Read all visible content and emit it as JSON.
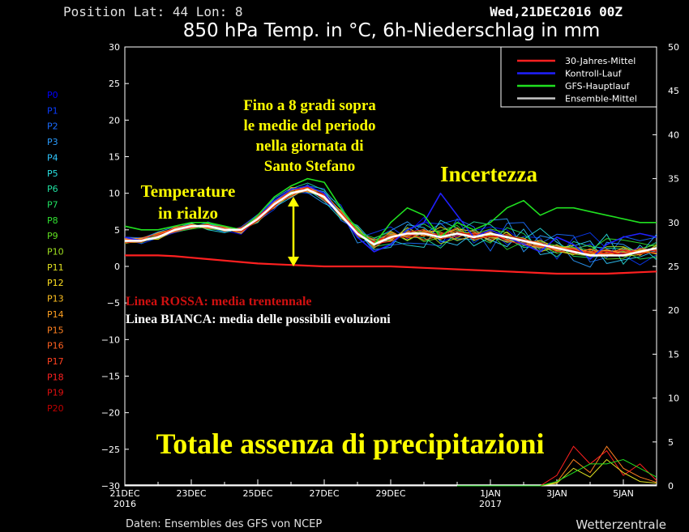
{
  "header": {
    "position_text": "Position  Lat: 44 Lon: 8",
    "date_text": "Wed,21DEC2016 00Z",
    "title": "850 hPa Temp. in °C, 6h-Niederschlag in mm"
  },
  "footer": {
    "source": "Daten: Ensembles des GFS von NCEP",
    "brand": "Wetterzentrale"
  },
  "members": [
    "P0",
    "P1",
    "P2",
    "P3",
    "P4",
    "P5",
    "P6",
    "P7",
    "P8",
    "P9",
    "P10",
    "P11",
    "P12",
    "P13",
    "P14",
    "P15",
    "P16",
    "P17",
    "P18",
    "P19",
    "P20"
  ],
  "member_colors": [
    "#0000ff",
    "#0a3cff",
    "#1a6cff",
    "#2a9cff",
    "#30c8ff",
    "#28e0e0",
    "#20e0a0",
    "#20e060",
    "#30e030",
    "#60e020",
    "#a0e020",
    "#e0e020",
    "#ffe020",
    "#ffc020",
    "#ffa020",
    "#ff8020",
    "#ff6020",
    "#ff4020",
    "#ff2020",
    "#e01010",
    "#c00000"
  ],
  "legend": {
    "items": [
      {
        "label": "30-Jahres-Mittel",
        "color": "#ff2020"
      },
      {
        "label": "Kontroll-Lauf",
        "color": "#2020ff"
      },
      {
        "label": "GFS-Hauptlauf",
        "color": "#20e020"
      },
      {
        "label": "Ensemble-Mittel",
        "color": "#c8c8c8"
      }
    ]
  },
  "annotations": {
    "temp_rise": [
      "Temperature",
      "in rialzo"
    ],
    "peak": [
      "Fino a 8 gradi sopra",
      "le medie del periodo",
      "nella giornata di",
      "Santo Stefano"
    ],
    "uncertainty": "Incertezza",
    "red_line": "Linea ROSSA: media trentennale",
    "white_line": "Linea BIANCA: media delle possibili evoluzioni",
    "precip": "Totale assenza di precipitazioni"
  },
  "chart_data": {
    "type": "line",
    "x": [
      0,
      0.5,
      1,
      1.5,
      2,
      2.5,
      3,
      3.5,
      4,
      4.5,
      5,
      5.5,
      6,
      6.5,
      7,
      7.5,
      8,
      8.5,
      9,
      9.5,
      10,
      10.5,
      11,
      11.5,
      12,
      12.5,
      13,
      13.5,
      14,
      14.5,
      15,
      15.5,
      16
    ],
    "x_unit": "days since 21DEC2016",
    "xticks": [
      {
        "day": 0,
        "label": "21DEC",
        "sub": "2016"
      },
      {
        "day": 2,
        "label": "23DEC",
        "sub": ""
      },
      {
        "day": 4,
        "label": "25DEC",
        "sub": ""
      },
      {
        "day": 6,
        "label": "27DEC",
        "sub": ""
      },
      {
        "day": 8,
        "label": "29DEC",
        "sub": ""
      },
      {
        "day": 11,
        "label": "1JAN",
        "sub": "2017"
      },
      {
        "day": 13,
        "label": "3JAN",
        "sub": ""
      },
      {
        "day": 15,
        "label": "5JAN",
        "sub": ""
      }
    ],
    "xlim": [
      0,
      16
    ],
    "ylim_left": [
      -30,
      30
    ],
    "yticks_left": [
      30,
      25,
      20,
      15,
      10,
      5,
      0,
      -5,
      -10,
      -15,
      -20,
      -25,
      -30
    ],
    "ylabel_left": "",
    "ylim_right": [
      0,
      50
    ],
    "yticks_right": [
      50,
      45,
      40,
      35,
      30,
      25,
      20,
      15,
      10,
      5,
      0
    ],
    "ylabel_right": "",
    "grid": false,
    "legend_position": "top-right",
    "series": [
      {
        "name": "30-Jahres-Mittel",
        "color": "#ff2020",
        "width": 2.2,
        "values": [
          1.5,
          1.5,
          1.5,
          1.4,
          1.2,
          1.0,
          0.8,
          0.6,
          0.4,
          0.3,
          0.2,
          0.1,
          0.0,
          0.0,
          0.0,
          0.0,
          0.0,
          -0.1,
          -0.2,
          -0.3,
          -0.4,
          -0.5,
          -0.6,
          -0.7,
          -0.8,
          -0.9,
          -1.0,
          -1.0,
          -1.0,
          -1.0,
          -0.9,
          -0.8,
          -0.7
        ]
      },
      {
        "name": "Kontroll-Lauf",
        "color": "#2020ff",
        "width": 1.6,
        "values": [
          4,
          3.5,
          4,
          5,
          5.5,
          5.5,
          5,
          5,
          7,
          9,
          10.5,
          11,
          10,
          7,
          4,
          2,
          3,
          5,
          6,
          10,
          7,
          4,
          5,
          4,
          3,
          2,
          4,
          3,
          1,
          3,
          4,
          4.5,
          4
        ]
      },
      {
        "name": "GFS-Hauptlauf",
        "color": "#20e020",
        "width": 1.6,
        "values": [
          5.5,
          5,
          5,
          5.5,
          6,
          6,
          5.5,
          5,
          7,
          9.5,
          11,
          12,
          11.5,
          8,
          5,
          3,
          6,
          8,
          7,
          4,
          6,
          5,
          6,
          8,
          9,
          7,
          8,
          8,
          7.5,
          7,
          6.5,
          6,
          6
        ]
      },
      {
        "name": "Ensemble-Mittel",
        "color": "#ffffff",
        "width": 2.6,
        "values": [
          3.5,
          3.5,
          4,
          5,
          5.5,
          5.5,
          5,
          5,
          6.5,
          8.5,
          10,
          10.5,
          9.5,
          7,
          4.5,
          3,
          4,
          4.5,
          4.5,
          4,
          4.5,
          4,
          4.5,
          4,
          3.5,
          3,
          2.5,
          2,
          1.5,
          1.5,
          1.5,
          2,
          2.5
        ]
      }
    ],
    "ensemble_members": [
      [
        3.2,
        3.6,
        4.2,
        5.1,
        5.8,
        5.2,
        4.9,
        4.4,
        6.6,
        8.9,
        9.6,
        11.2,
        9.1,
        6.8,
        5.2,
        3.4,
        4.1,
        4.5,
        6.7,
        3.3,
        4.2,
        4.9,
        5.4,
        5.0,
        3.2,
        2.4,
        2.5,
        2.2,
        3.1,
        2.0,
        1.8,
        2.6,
        1.9
      ],
      [
        3.7,
        3.1,
        3.9,
        4.6,
        5.2,
        6.1,
        5.3,
        5.0,
        6.2,
        7.8,
        10.3,
        10.0,
        9.8,
        8.4,
        3.9,
        4.6,
        5.4,
        3.8,
        6.0,
        5.8,
        6.4,
        3.2,
        4.8,
        3.0,
        4.1,
        3.9,
        1.0,
        3.9,
        4.6,
        2.4,
        1.5,
        0.2,
        1.6
      ],
      [
        4.0,
        3.9,
        4.0,
        5.0,
        5.7,
        5.3,
        4.7,
        5.4,
        7.1,
        8.6,
        9.9,
        11.0,
        10.6,
        6.3,
        5.0,
        2.0,
        2.9,
        3.2,
        3.1,
        2.8,
        6.5,
        5.4,
        2.1,
        5.9,
        6.0,
        3.1,
        4.4,
        4.2,
        0.6,
        1.2,
        4.1,
        3.5,
        4.0
      ],
      [
        3.3,
        3.8,
        4.7,
        5.4,
        5.5,
        5.8,
        5.2,
        4.8,
        6.8,
        9.3,
        10.7,
        10.1,
        8.6,
        7.6,
        3.2,
        3.8,
        4.9,
        6.1,
        4.4,
        5.9,
        3.8,
        3.7,
        6.3,
        6.5,
        2.0,
        4.2,
        3.7,
        0.8,
        -0.1,
        3.3,
        3.0,
        1.7,
        4.4
      ],
      [
        3.9,
        3.4,
        4.4,
        4.8,
        5.3,
        5.7,
        5.5,
        4.9,
        6.4,
        8.1,
        9.4,
        10.8,
        10.2,
        7.2,
        4.8,
        2.3,
        2.6,
        5.7,
        5.3,
        3.5,
        2.9,
        4.6,
        3.6,
        2.7,
        5.1,
        1.6,
        2.0,
        2.8,
        3.5,
        0.4,
        0.9,
        1.3,
        2.2
      ],
      [
        3.5,
        3.7,
        4.1,
        5.2,
        5.9,
        5.0,
        4.6,
        5.2,
        6.0,
        8.8,
        10.1,
        10.5,
        8.9,
        6.5,
        5.6,
        3.1,
        3.6,
        2.9,
        2.6,
        6.3,
        5.2,
        2.8,
        4.0,
        3.4,
        3.7,
        5.2,
        3.3,
        1.9,
        1.8,
        4.4,
        0.3,
        2.9,
        0.9
      ],
      [
        3.6,
        3.3,
        4.3,
        4.9,
        5.6,
        5.6,
        5.1,
        4.6,
        7.0,
        8.3,
        10.6,
        11.4,
        10.4,
        7.9,
        4.3,
        3.6,
        4.5,
        4.0,
        3.9,
        2.5,
        4.7,
        6.1,
        5.7,
        3.8,
        2.6,
        2.7,
        1.3,
        3.4,
        2.7,
        2.5,
        2.4,
        2.1,
        3.3
      ],
      [
        3.4,
        3.5,
        3.8,
        5.3,
        5.4,
        5.9,
        5.4,
        5.1,
        6.5,
        9.0,
        9.8,
        10.3,
        9.4,
        7.4,
        5.4,
        2.7,
        3.1,
        5.1,
        5.8,
        4.5,
        3.5,
        4.2,
        3.2,
        5.3,
        4.5,
        2.2,
        3.0,
        1.4,
        1.2,
        1.7,
        2.1,
        1.0,
        1.3
      ],
      [
        3.8,
        3.2,
        4.5,
        4.7,
        5.1,
        5.4,
        4.8,
        5.3,
        6.7,
        8.4,
        10.4,
        10.6,
        9.7,
        6.6,
        4.7,
        3.9,
        4.7,
        3.5,
        4.7,
        4.9,
        5.6,
        3.5,
        4.5,
        2.3,
        3.4,
        3.4,
        2.8,
        2.6,
        2.2,
        3.8,
        3.6,
        3.2,
        2.7
      ],
      [
        3.1,
        3.7,
        4.0,
        5.2,
        5.7,
        5.1,
        5.0,
        4.7,
        6.3,
        8.7,
        10.0,
        11.1,
        9.0,
        7.7,
        4.1,
        3.3,
        3.9,
        4.8,
        3.4,
        3.9,
        4.9,
        4.4,
        5.1,
        4.6,
        2.8,
        2.9,
        1.8,
        2.4,
        2.9,
        1.0,
        1.1,
        2.4,
        3.0
      ],
      [
        3.2,
        3.4,
        4.1,
        5.0,
        5.5,
        5.5,
        5.0,
        5.0,
        6.9,
        8.5,
        10.2,
        10.4,
        9.9,
        7.0,
        5.1,
        2.5,
        4.3,
        4.2,
        5.1,
        3.1,
        3.9,
        5.0,
        3.9,
        4.2,
        3.9,
        2.6,
        2.2,
        1.7,
        1.4,
        2.7,
        2.7,
        1.9,
        2.0
      ],
      [
        3.6,
        3.6,
        4.6,
        5.1,
        5.3,
        5.6,
        4.9,
        4.9,
        6.1,
        8.2,
        9.7,
        10.9,
        9.3,
        7.3,
        4.6,
        3.5,
        3.5,
        5.3,
        4.1,
        5.4,
        4.4,
        3.9,
        4.3,
        3.3,
        3.6,
        2.0,
        2.7,
        2.3,
        2.0,
        1.8,
        1.4,
        1.6,
        2.5
      ],
      [
        3.9,
        3.8,
        3.7,
        4.9,
        5.8,
        5.3,
        5.3,
        4.8,
        6.6,
        8.8,
        10.5,
        10.2,
        9.6,
        6.9,
        5.3,
        2.8,
        4.8,
        3.6,
        4.8,
        4.3,
        5.1,
        4.8,
        3.4,
        4.7,
        2.9,
        3.6,
        2.4,
        2.9,
        1.6,
        2.2,
        1.9,
        2.2,
        1.7
      ],
      [
        3.3,
        3.3,
        4.3,
        5.3,
        5.2,
        5.7,
        5.1,
        5.1,
        6.4,
        8.6,
        9.5,
        10.7,
        10.0,
        7.5,
        4.4,
        3.2,
        3.8,
        4.9,
        4.3,
        3.7,
        4.6,
        4.3,
        4.7,
        3.6,
        3.5,
        3.2,
        2.1,
        1.6,
        2.4,
        1.4,
        2.6,
        1.5,
        2.9
      ],
      [
        3.7,
        3.5,
        4.2,
        4.8,
        5.6,
        5.2,
        5.2,
        4.5,
        6.8,
        8.0,
        10.8,
        10.6,
        9.2,
        7.1,
        4.9,
        3.0,
        4.4,
        4.1,
        4.9,
        4.7,
        3.6,
        4.1,
        4.9,
        4.1,
        3.1,
        2.5,
        2.9,
        2.1,
        1.7,
        2.3,
        1.6,
        2.3,
        2.3
      ],
      [
        3.5,
        3.9,
        4.4,
        5.0,
        5.4,
        5.8,
        4.8,
        5.2,
        6.5,
        8.9,
        10.0,
        11.0,
        9.5,
        6.7,
        4.5,
        3.7,
        3.7,
        4.6,
        3.6,
        4.2,
        5.3,
        3.6,
        4.2,
        3.9,
        3.8,
        3.0,
        2.6,
        2.5,
        1.9,
        1.6,
        2.0,
        2.0,
        1.8
      ],
      [
        3.4,
        3.6,
        3.9,
        5.4,
        5.6,
        5.4,
        5.0,
        4.9,
        6.3,
        8.4,
        9.9,
        10.3,
        9.8,
        7.6,
        4.8,
        2.6,
        4.0,
        4.4,
        4.6,
        4.1,
        4.3,
        4.6,
        3.7,
        4.4,
        3.3,
        2.8,
        2.3,
        2.0,
        2.3,
        2.0,
        2.3,
        1.8,
        2.4
      ],
      [
        3.8,
        3.4,
        4.1,
        4.7,
        5.3,
        5.6,
        5.4,
        5.0,
        6.7,
        8.7,
        10.3,
        10.8,
        9.4,
        7.2,
        4.2,
        3.3,
        4.6,
        3.9,
        4.2,
        4.5,
        4.8,
        4.2,
        4.4,
        3.7,
        3.6,
        3.3,
        2.5,
        2.4,
        1.5,
        1.9,
        1.7,
        2.5,
        2.1
      ],
      [
        3.6,
        3.7,
        4.5,
        5.1,
        5.7,
        5.3,
        5.1,
        4.7,
        6.4,
        8.3,
        10.6,
        10.5,
        9.7,
        6.8,
        5.0,
        3.1,
        3.4,
        4.7,
        5.0,
        3.8,
        4.1,
        4.5,
        4.6,
        3.5,
        3.0,
        2.7,
        2.7,
        1.8,
        2.1,
        1.7,
        2.2,
        1.9,
        2.6
      ],
      [
        3.2,
        3.5,
        4.0,
        5.2,
        5.5,
        5.7,
        4.9,
        5.3,
        6.9,
        8.6,
        9.6,
        10.9,
        9.0,
        7.4,
        4.6,
        3.4,
        4.2,
        4.3,
        4.4,
        4.4,
        4.5,
        3.8,
        4.1,
        4.0,
        3.4,
        3.1,
        2.0,
        2.2,
        1.8,
        2.1,
        1.5,
        2.1,
        2.2
      ],
      [
        3.5,
        3.3,
        4.3,
        4.9,
        5.4,
        5.5,
        5.2,
        4.8,
        6.2,
        8.2,
        10.1,
        10.4,
        9.9,
        7.0,
        4.7,
        2.9,
        3.9,
        4.0,
        4.7,
        4.0,
        4.6,
        4.4,
        4.0,
        4.3,
        3.7,
        2.9,
        2.4,
        2.3,
        1.4,
        1.5,
        1.8,
        1.7,
        2.0
      ]
    ],
    "precip_x": [
      10,
      12.5,
      13,
      13.5,
      14,
      14.5,
      15,
      15.5,
      16
    ],
    "precip_series": [
      {
        "color": "#ff8020",
        "values": [
          0,
          0,
          0.4,
          3,
          1.5,
          4.5,
          2,
          1,
          0.4
        ]
      },
      {
        "color": "#ff2020",
        "values": [
          0,
          0,
          1.2,
          4.5,
          2.5,
          4,
          1.2,
          2.5,
          0.6
        ]
      },
      {
        "color": "#e0e020",
        "values": [
          0,
          0,
          0.3,
          2,
          1,
          3,
          1.5,
          0.5,
          0.3
        ]
      },
      {
        "color": "#20e020",
        "values": [
          0,
          0,
          0.5,
          1.5,
          2.5,
          2.5,
          3,
          2,
          1
        ]
      }
    ]
  }
}
